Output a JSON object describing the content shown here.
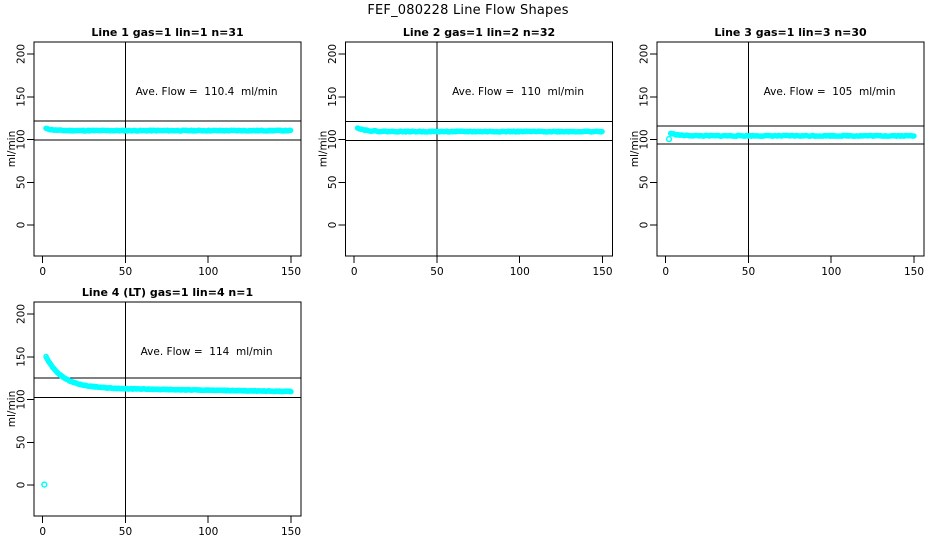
{
  "main_title": "FEF_080228  Line Flow Shapes",
  "colors": {
    "trace": "#00FFFF",
    "axis": "#000000",
    "background": "#FFFFFF"
  },
  "chart_data": [
    {
      "type": "scatter",
      "title": "Line 1 gas=1 lin=1 n=31",
      "gas": 1,
      "lin": 1,
      "n": 31,
      "ylabel": "ml/min",
      "annotation": "Ave. Flow =  110.4  ml/min",
      "ave_flow_ml_min": 110.4,
      "xlim": [
        0,
        150
      ],
      "ylim": [
        0,
        200
      ],
      "xticks": [
        0,
        50,
        100,
        150
      ],
      "yticks": [
        0,
        50,
        100,
        150,
        200
      ],
      "vline_x": 50,
      "hlines_y": [
        121.4,
        99.4
      ],
      "annotation_at": [
        99,
        152
      ],
      "trace": {
        "x_start": 2,
        "x_end": 150,
        "x_step": 0.75,
        "base": 110.4,
        "bump": 2.5,
        "tau": 4,
        "noise": 0.5,
        "drift": 0,
        "drift_start": 0,
        "seed": 11
      },
      "extra_points": []
    },
    {
      "type": "scatter",
      "title": "Line 2 gas=1 lin=2 n=32",
      "gas": 1,
      "lin": 2,
      "n": 32,
      "ylabel": "ml/min",
      "annotation": "Ave. Flow =  110  ml/min",
      "ave_flow_ml_min": 110,
      "xlim": [
        0,
        150
      ],
      "ylim": [
        0,
        200
      ],
      "xticks": [
        0,
        50,
        100,
        150
      ],
      "yticks": [
        0,
        50,
        100,
        150,
        200
      ],
      "vline_x": 50,
      "hlines_y": [
        121,
        99
      ],
      "annotation_at": [
        99,
        152
      ],
      "trace": {
        "x_start": 2,
        "x_end": 150,
        "x_step": 0.75,
        "base": 109.3,
        "bump": 4.5,
        "tau": 5,
        "noise": 0.5,
        "drift": 0,
        "drift_start": 0,
        "seed": 22
      },
      "extra_points": []
    },
    {
      "type": "scatter",
      "title": "Line 3 gas=1 lin=3 n=30",
      "gas": 1,
      "lin": 3,
      "n": 30,
      "ylabel": "ml/min",
      "annotation": "Ave. Flow =  105  ml/min",
      "ave_flow_ml_min": 105,
      "xlim": [
        0,
        150
      ],
      "ylim": [
        0,
        200
      ],
      "xticks": [
        0,
        50,
        100,
        150
      ],
      "yticks": [
        0,
        50,
        100,
        150,
        200
      ],
      "vline_x": 50,
      "hlines_y": [
        115.5,
        94.5
      ],
      "annotation_at": [
        99,
        152
      ],
      "trace": {
        "x_start": 3,
        "x_end": 150,
        "x_step": 0.75,
        "base": 104.3,
        "bump": 2.8,
        "tau": 5,
        "noise": 0.5,
        "drift": 0,
        "drift_start": 0,
        "seed": 33
      },
      "extra_points": [
        [
          2,
          100.5
        ]
      ]
    },
    {
      "type": "scatter",
      "title": "Line 4 (LT) gas=1 lin=4 n=1",
      "gas": 1,
      "lin": 4,
      "n": 1,
      "ylabel": "ml/min",
      "annotation": "Ave. Flow =  114  ml/min",
      "ave_flow_ml_min": 114,
      "xlim": [
        0,
        150
      ],
      "ylim": [
        0,
        200
      ],
      "xticks": [
        0,
        50,
        100,
        150
      ],
      "yticks": [
        0,
        50,
        100,
        150,
        200
      ],
      "vline_x": 50,
      "hlines_y": [
        125.4,
        102.6
      ],
      "annotation_at": [
        99,
        152
      ],
      "trace": {
        "x_start": 2,
        "x_end": 150,
        "x_step": 0.5,
        "base": 113,
        "bump": 37,
        "tau": 10,
        "noise": 0.4,
        "drift": 0.03,
        "drift_start": 30,
        "seed": 44
      },
      "extra_points": [
        [
          1,
          0.5
        ]
      ]
    }
  ]
}
